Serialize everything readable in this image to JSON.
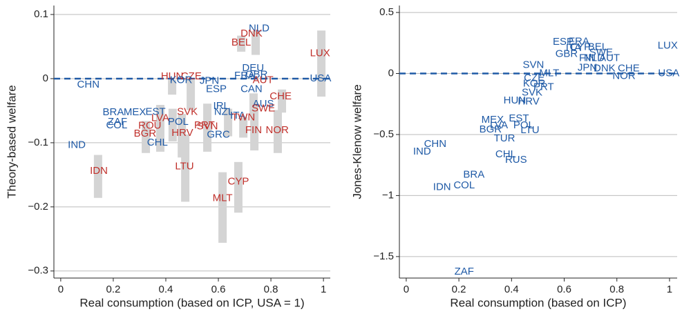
{
  "chart_data": [
    {
      "type": "scatter",
      "xlabel": "Real consumption (based on ICP, USA = 1)",
      "ylabel": "Theory-based welfare",
      "xlim": [
        -0.026,
        1.026
      ],
      "ylim": [
        -0.311,
        0.114
      ],
      "xticks": [
        0,
        0.2,
        0.4,
        0.6,
        0.8,
        1
      ],
      "yticks": [
        {
          "value": -0.3,
          "label": "−0.3"
        },
        {
          "value": -0.2,
          "label": "−0.2"
        },
        {
          "value": -0.1,
          "label": "−0.1"
        },
        0,
        0.1
      ],
      "grid": true,
      "hline": 0,
      "hline_color": "#1f5aa6",
      "ranges": {
        "color": "#d4d4d4",
        "x": [
          0.742,
          0.687,
          0.992,
          0.424,
          0.495,
          0.842,
          0.734,
          0.558,
          0.737,
          0.826,
          0.616,
          0.676,
          0.474,
          0.142,
          0.324,
          0.379,
          0.461,
          0.426,
          0.637,
          0.695
        ],
        "high": [
          0.074,
          0.067,
          0.075,
          -0.002,
          -0.002,
          -0.017,
          -0.023,
          -0.039,
          -0.039,
          -0.049,
          -0.146,
          -0.13,
          -0.087,
          -0.119,
          -0.066,
          -0.041,
          -0.055,
          -0.047,
          -0.047,
          -0.06
        ],
        "low": [
          0.037,
          0.042,
          -0.028,
          -0.025,
          -0.049,
          -0.053,
          -0.055,
          -0.114,
          -0.112,
          -0.116,
          -0.256,
          -0.209,
          -0.192,
          -0.186,
          -0.116,
          -0.114,
          -0.123,
          -0.098,
          -0.09,
          -0.092
        ]
      },
      "labels": [
        "NLD",
        "DNK",
        "BEL",
        "LUX",
        "DEU",
        "HUN",
        "CZE",
        "KOR",
        "JPN",
        "FRA",
        "GBR",
        "AUT",
        "USA",
        "CHN",
        "ESP",
        "CAN",
        "CHE",
        "AUS",
        "IRL",
        "SWE",
        "NZL",
        "ITA",
        "TWN",
        "SVK",
        "BRA",
        "MEX",
        "EST",
        "LVA",
        "POL",
        "ZAF",
        "COL",
        "ROU",
        "PRT",
        "SVN",
        "BGR",
        "HRV",
        "GRC",
        "FIN",
        "NOR",
        "CHL",
        "IND",
        "IDN",
        "LTU",
        "CYP",
        "MLT"
      ],
      "x": [
        0.755,
        0.726,
        0.687,
        0.987,
        0.732,
        0.424,
        0.497,
        0.458,
        0.566,
        0.7,
        0.745,
        0.77,
        0.989,
        0.105,
        0.592,
        0.726,
        0.837,
        0.771,
        0.611,
        0.771,
        0.621,
        0.674,
        0.695,
        0.482,
        0.2,
        0.282,
        0.361,
        0.379,
        0.447,
        0.216,
        0.213,
        0.339,
        0.547,
        0.558,
        0.321,
        0.463,
        0.6,
        0.734,
        0.824,
        0.368,
        0.061,
        0.145,
        0.471,
        0.676,
        0.616
      ],
      "y": [
        0.078,
        0.07,
        0.056,
        0.039,
        0.016,
        0.003,
        0.003,
        -0.003,
        -0.004,
        0.004,
        0.006,
        -0.003,
        0,
        -0.01,
        -0.017,
        -0.017,
        -0.028,
        -0.04,
        -0.043,
        -0.047,
        -0.052,
        -0.058,
        -0.061,
        -0.052,
        -0.053,
        -0.053,
        -0.052,
        -0.062,
        -0.068,
        -0.068,
        -0.073,
        -0.074,
        -0.073,
        -0.075,
        -0.086,
        -0.085,
        -0.088,
        -0.081,
        -0.081,
        -0.1,
        -0.104,
        -0.144,
        -0.137,
        -0.161,
        -0.187
      ],
      "colors": [
        "#1f5aa6",
        "#c0302b",
        "#c0302b",
        "#c0302b",
        "#1f5aa6",
        "#c0302b",
        "#c0302b",
        "#1f5aa6",
        "#1f5aa6",
        "#1f5aa6",
        "#1f5aa6",
        "#c0302b",
        "#1f5aa6",
        "#1f5aa6",
        "#1f5aa6",
        "#1f5aa6",
        "#c0302b",
        "#1f5aa6",
        "#1f5aa6",
        "#c0302b",
        "#1f5aa6",
        "#1f5aa6",
        "#c0302b",
        "#c0302b",
        "#1f5aa6",
        "#1f5aa6",
        "#1f5aa6",
        "#c0302b",
        "#1f5aa6",
        "#1f5aa6",
        "#1f5aa6",
        "#c0302b",
        "#c0302b",
        "#c0302b",
        "#c0302b",
        "#c0302b",
        "#1f5aa6",
        "#c0302b",
        "#c0302b",
        "#1f5aa6",
        "#1f5aa6",
        "#c0302b",
        "#c0302b",
        "#c0302b",
        "#c0302b"
      ]
    },
    {
      "type": "scatter",
      "xlabel": "Real consumption (based on ICP)",
      "ylabel": "Jones-Klenow welfare",
      "xlim": [
        -0.026,
        1.029
      ],
      "ylim": [
        -1.676,
        0.557
      ],
      "xticks": [
        0,
        0.2,
        0.4,
        0.6,
        0.8,
        1
      ],
      "yticks": [
        {
          "value": -1.5,
          "label": "−1.5"
        },
        {
          "value": -1,
          "label": "−1"
        },
        {
          "value": -0.5,
          "label": "−0.5"
        },
        0,
        0.5
      ],
      "grid": true,
      "hline": 0,
      "hline_color": "#1f5aa6",
      "labels": [
        "LUX",
        "ESP",
        "FRA",
        "CYP",
        "ITA",
        "GBR",
        "BEL",
        "SWE",
        "NLD",
        "AUT",
        "FIN",
        "DNK",
        "CHE",
        "USA",
        "NOR",
        "MLT",
        "JPN",
        "SVN",
        "CZE",
        "KOR",
        "PRT",
        "SVK",
        "HUN",
        "HRV",
        "MEX",
        "EST",
        "LVA",
        "POL",
        "BGR",
        "LTU",
        "TUR",
        "CHL",
        "RUS",
        "CHN",
        "IND",
        "BRA",
        "COL",
        "IDN",
        "ZAF"
      ],
      "x": [
        0.993,
        0.596,
        0.656,
        0.661,
        0.635,
        0.609,
        0.727,
        0.74,
        0.714,
        0.772,
        0.688,
        0.753,
        0.845,
        0.997,
        0.827,
        0.543,
        0.688,
        0.483,
        0.486,
        0.486,
        0.522,
        0.478,
        0.412,
        0.465,
        0.328,
        0.428,
        0.352,
        0.446,
        0.32,
        0.47,
        0.373,
        0.378,
        0.417,
        0.11,
        0.06,
        0.257,
        0.22,
        0.136,
        0.22
      ],
      "y": [
        0.227,
        0.256,
        0.261,
        0.216,
        0.205,
        0.159,
        0.216,
        0.17,
        0.125,
        0.125,
        0.125,
        0.04,
        0.04,
        0,
        -0.023,
        0,
        0.045,
        0.068,
        -0.04,
        -0.085,
        -0.114,
        -0.159,
        -0.222,
        -0.233,
        -0.381,
        -0.369,
        -0.426,
        -0.426,
        -0.46,
        -0.466,
        -0.534,
        -0.665,
        -0.71,
        -0.58,
        -0.642,
        -0.83,
        -0.92,
        -0.932,
        -1.625
      ],
      "color": "#1f5aa6"
    }
  ]
}
